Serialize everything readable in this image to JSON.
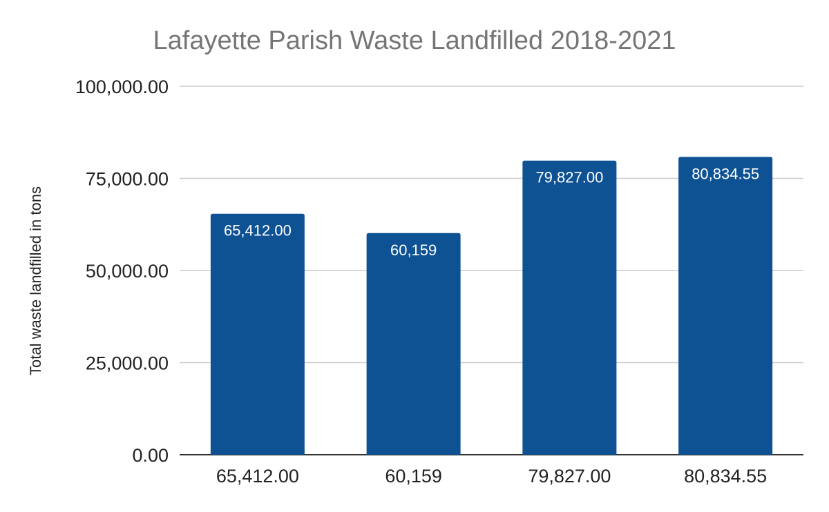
{
  "chart_data": {
    "type": "bar",
    "title": "Lafayette Parish Waste Landfilled 2018-2021",
    "xlabel": "",
    "ylabel": "Total waste landfilled in tons",
    "categories": [
      "65,412.00",
      "60,159",
      "79,827.00",
      "80,834.55"
    ],
    "values": [
      65412.0,
      60159,
      79827.0,
      80834.55
    ],
    "data_labels": [
      "65,412.00",
      "60,159",
      "79,827.00",
      "80,834.55"
    ],
    "ylim": [
      0,
      100000
    ],
    "yticks": [
      0,
      25000,
      50000,
      75000,
      100000
    ],
    "ytick_labels": [
      "0.00",
      "25,000.00",
      "50,000.00",
      "75,000.00",
      "100,000.00"
    ],
    "grid": true,
    "legend": "none",
    "colors": {
      "bar": "#0f5294",
      "grid": "#cccccc",
      "axis": "#333333"
    }
  }
}
